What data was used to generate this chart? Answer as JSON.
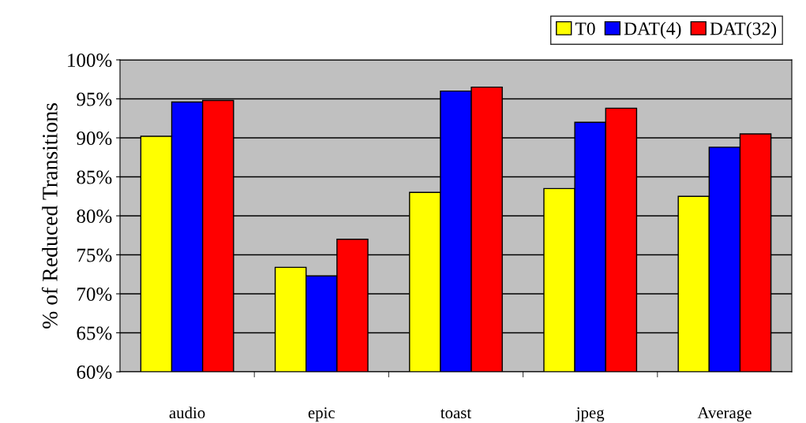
{
  "chart_data": {
    "type": "bar",
    "ylabel": "% of Reduced Transitions",
    "categories": [
      "audio",
      "epic",
      "toast",
      "jpeg",
      "Average"
    ],
    "series": [
      {
        "name": "T0",
        "color": "#ffff00",
        "values": [
          90.2,
          73.4,
          83.0,
          83.5,
          82.5
        ]
      },
      {
        "name": "DAT(4)",
        "color": "#0000ff",
        "values": [
          94.6,
          72.3,
          96.0,
          92.0,
          88.8
        ]
      },
      {
        "name": "DAT(32)",
        "color": "#ff0000",
        "values": [
          94.8,
          77.0,
          96.5,
          93.8,
          90.5
        ]
      }
    ],
    "ylim": [
      60,
      100
    ],
    "yticks": [
      {
        "value": 60,
        "label": "60%"
      },
      {
        "value": 65,
        "label": "65%"
      },
      {
        "value": 70,
        "label": "70%"
      },
      {
        "value": 75,
        "label": "75%"
      },
      {
        "value": 80,
        "label": "80%"
      },
      {
        "value": 85,
        "label": "85%"
      },
      {
        "value": 90,
        "label": "90%"
      },
      {
        "value": 95,
        "label": "95%"
      },
      {
        "value": 100,
        "label": "100%"
      }
    ],
    "grid": "y",
    "legend": "top right"
  }
}
